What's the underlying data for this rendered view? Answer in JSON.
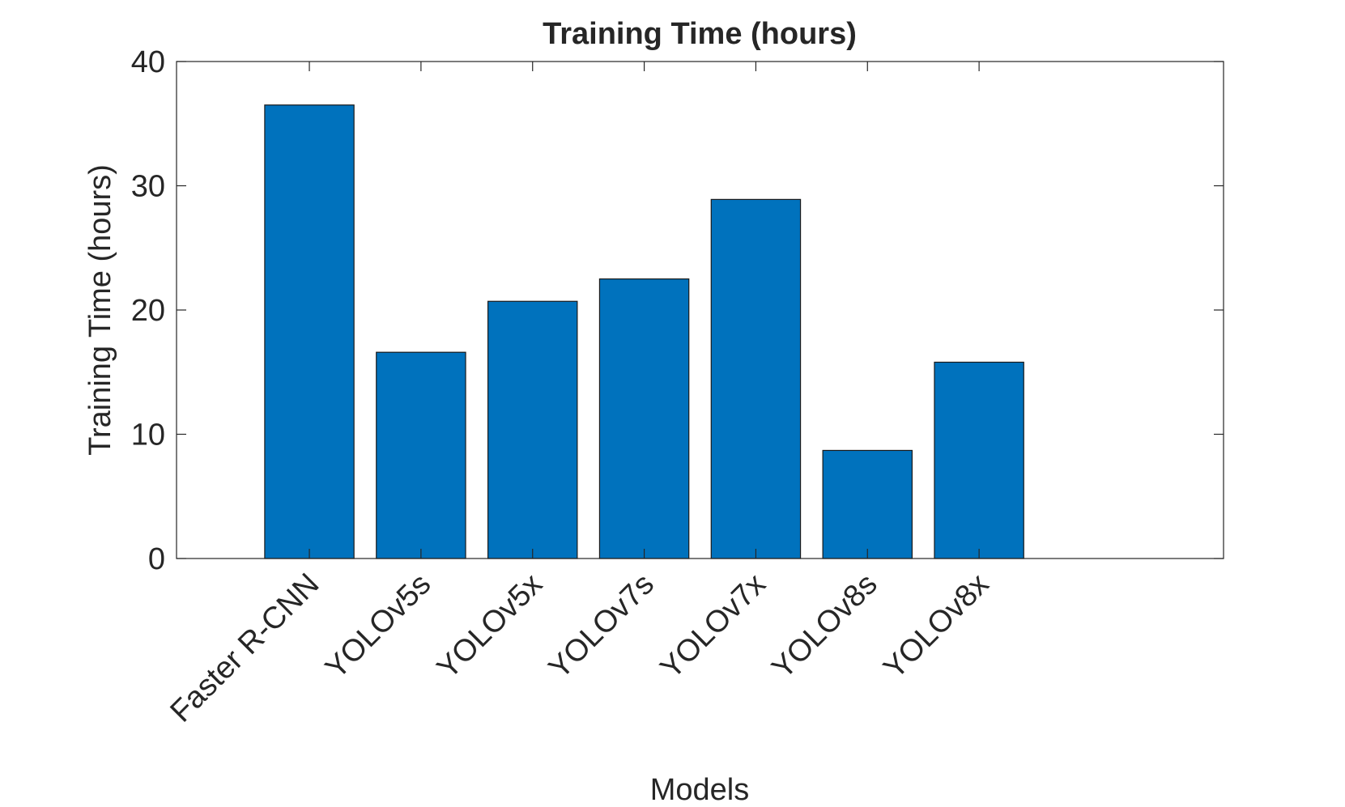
{
  "chart_data": {
    "type": "bar",
    "title": "Training Time (hours)",
    "x_label": "Models",
    "y_label": "Training Time (hours)",
    "categories": [
      "Faster R-CNN",
      "YOLOv5s",
      "YOLOv5x",
      "YOLOv7s",
      "YOLOv7x",
      "YOLOv8s",
      "YOLOv8x"
    ],
    "values": [
      36.5,
      16.6,
      20.7,
      22.5,
      28.9,
      8.7,
      15.8
    ],
    "color": "#0072bd",
    "ylim": [
      0,
      40
    ],
    "yticks": [
      0,
      10,
      20,
      30,
      40
    ]
  }
}
